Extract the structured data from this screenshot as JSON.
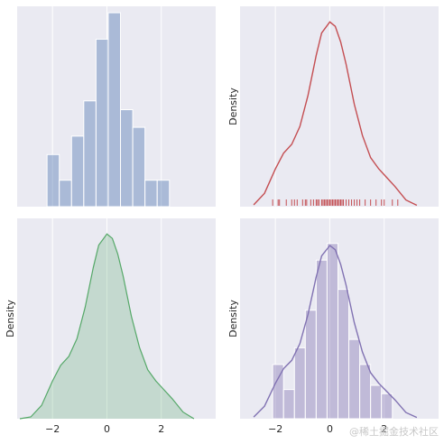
{
  "chart_data": [
    {
      "type": "bar",
      "panel": "top-left",
      "style": "histogram",
      "color": "#4C72B0",
      "bin_edges": [
        -2.2,
        -1.75,
        -1.3,
        -0.85,
        -0.4,
        0.05,
        0.5,
        0.95,
        1.4,
        1.85,
        2.3
      ],
      "values": [
        0.13,
        0.066,
        0.176,
        0.264,
        0.418,
        0.484,
        0.242,
        0.198,
        0.066,
        0.066
      ],
      "xlim": [
        -3.3,
        4.0
      ],
      "ylim": [
        0,
        0.5
      ],
      "xlabel": "",
      "ylabel": "",
      "show_xticks": false,
      "show_yticks": false
    },
    {
      "type": "line",
      "panel": "top-right",
      "style": "kde-with-rug",
      "color": "#C44E52",
      "x": [
        -2.8,
        -2.4,
        -2.0,
        -1.7,
        -1.4,
        -1.1,
        -0.8,
        -0.5,
        -0.3,
        0.0,
        0.2,
        0.4,
        0.6,
        0.9,
        1.2,
        1.5,
        1.8,
        2.1,
        2.4,
        2.8,
        3.2
      ],
      "y": [
        0.004,
        0.03,
        0.085,
        0.12,
        0.14,
        0.18,
        0.25,
        0.34,
        0.39,
        0.415,
        0.405,
        0.37,
        0.32,
        0.23,
        0.16,
        0.11,
        0.085,
        0.065,
        0.045,
        0.015,
        0.003
      ],
      "rug": [
        -2.1,
        -1.9,
        -1.85,
        -1.6,
        -1.4,
        -1.3,
        -1.2,
        -1.0,
        -0.9,
        -0.85,
        -0.7,
        -0.6,
        -0.5,
        -0.45,
        -0.4,
        -0.3,
        -0.25,
        -0.2,
        -0.15,
        -0.1,
        -0.05,
        0.0,
        0.05,
        0.1,
        0.15,
        0.2,
        0.25,
        0.3,
        0.35,
        0.4,
        0.45,
        0.5,
        0.6,
        0.7,
        0.8,
        0.9,
        1.0,
        1.1,
        1.3,
        1.5,
        1.7,
        1.9,
        2.0,
        2.3,
        2.5
      ],
      "xlim": [
        -3.3,
        4.0
      ],
      "ylim": [
        0,
        0.45
      ],
      "xlabel": "",
      "ylabel": "Density",
      "show_xticks": false,
      "show_yticks": false
    },
    {
      "type": "area",
      "panel": "bottom-left",
      "style": "kde-shaded",
      "color": "#55A868",
      "x": [
        -3.2,
        -2.8,
        -2.4,
        -2.0,
        -1.7,
        -1.4,
        -1.1,
        -0.8,
        -0.5,
        -0.3,
        0.0,
        0.2,
        0.4,
        0.6,
        0.9,
        1.2,
        1.5,
        1.8,
        2.1,
        2.4,
        2.8,
        3.2
      ],
      "y": [
        0.0,
        0.004,
        0.03,
        0.085,
        0.12,
        0.14,
        0.18,
        0.25,
        0.34,
        0.39,
        0.415,
        0.405,
        0.37,
        0.32,
        0.23,
        0.16,
        0.11,
        0.085,
        0.065,
        0.045,
        0.015,
        0.0
      ],
      "xlim": [
        -3.3,
        4.0
      ],
      "ylim": [
        0,
        0.45
      ],
      "xlabel": "",
      "ylabel": "Density",
      "xticks": [
        -2,
        0,
        2
      ],
      "xtick_labels": [
        "−2",
        "0",
        "2"
      ],
      "show_yticks": false
    },
    {
      "type": "bar",
      "panel": "bottom-right",
      "style": "histogram-with-kde",
      "color": "#8172B2",
      "bin_edges": [
        -2.1,
        -1.7,
        -1.3,
        -0.9,
        -0.5,
        -0.1,
        0.3,
        0.7,
        1.1,
        1.5,
        1.9,
        2.3
      ],
      "values": [
        0.13,
        0.07,
        0.17,
        0.26,
        0.38,
        0.42,
        0.31,
        0.19,
        0.13,
        0.08,
        0.06
      ],
      "kde_x": [
        -2.8,
        -2.4,
        -2.0,
        -1.7,
        -1.4,
        -1.1,
        -0.8,
        -0.5,
        -0.3,
        0.0,
        0.2,
        0.4,
        0.6,
        0.9,
        1.2,
        1.5,
        1.8,
        2.1,
        2.4,
        2.8,
        3.2
      ],
      "kde_y": [
        0.004,
        0.03,
        0.085,
        0.12,
        0.14,
        0.18,
        0.25,
        0.34,
        0.39,
        0.415,
        0.405,
        0.37,
        0.32,
        0.23,
        0.16,
        0.11,
        0.085,
        0.065,
        0.045,
        0.015,
        0.003
      ],
      "xlim": [
        -3.3,
        4.0
      ],
      "ylim": [
        0,
        0.48
      ],
      "xlabel": "",
      "ylabel": "Density",
      "xticks": [
        -2,
        0,
        2
      ],
      "xtick_labels": [
        "−2",
        "0",
        "2"
      ],
      "show_yticks": false
    }
  ],
  "watermark": "@稀土掘金技术社区"
}
